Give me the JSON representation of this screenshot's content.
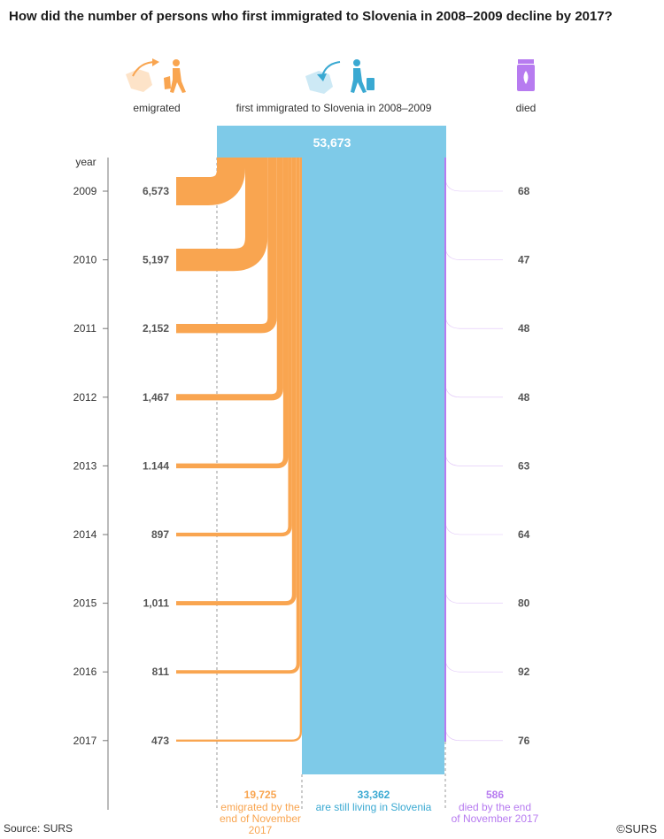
{
  "title": "How did the number of persons who first immigrated to Slovenia in 2008–2009 decline by 2017?",
  "source": "Source: SURS",
  "copyright": "©SURS",
  "colors": {
    "emigrated": "#f9a550",
    "living": "#7ecae8",
    "died": "#b77bf0",
    "axis": "#888888",
    "text": "#555555"
  },
  "icons": {
    "emigrated": "emigrating-person-icon",
    "immigrated": "immigrating-person-icon",
    "died": "urn-icon"
  },
  "headers": {
    "emigrated": "emigrated",
    "immigrated": "first immigrated to Slovenia in 2008–2009",
    "died": "died"
  },
  "chart_data": {
    "type": "sankey",
    "title": "How did the number of persons who first immigrated to Slovenia in 2008–2009 decline by 2017?",
    "total": "53,673",
    "year_label": "year",
    "years": [
      "2009",
      "2010",
      "2011",
      "2012",
      "2013",
      "2014",
      "2015",
      "2016",
      "2017"
    ],
    "emigrated_labels": [
      "6,573",
      "5,197",
      "2,152",
      "1,467",
      "1.144",
      "897",
      "1,011",
      "811",
      "473"
    ],
    "emigrated_values": [
      6573,
      5197,
      2152,
      1467,
      1144,
      897,
      1011,
      811,
      473
    ],
    "died_labels": [
      "68",
      "47",
      "48",
      "48",
      "63",
      "64",
      "80",
      "92",
      "76"
    ],
    "died_values": [
      68,
      47,
      48,
      48,
      63,
      64,
      80,
      92,
      76
    ],
    "totals": {
      "emigrated": {
        "value": "19,725",
        "lines": [
          "emigrated by the",
          "end of November",
          "2017"
        ]
      },
      "living": {
        "value": "33,362",
        "lines": [
          "are still living in Slovenia"
        ]
      },
      "died": {
        "value": "586",
        "lines": [
          "died by the end",
          "of November 2017"
        ]
      }
    }
  }
}
